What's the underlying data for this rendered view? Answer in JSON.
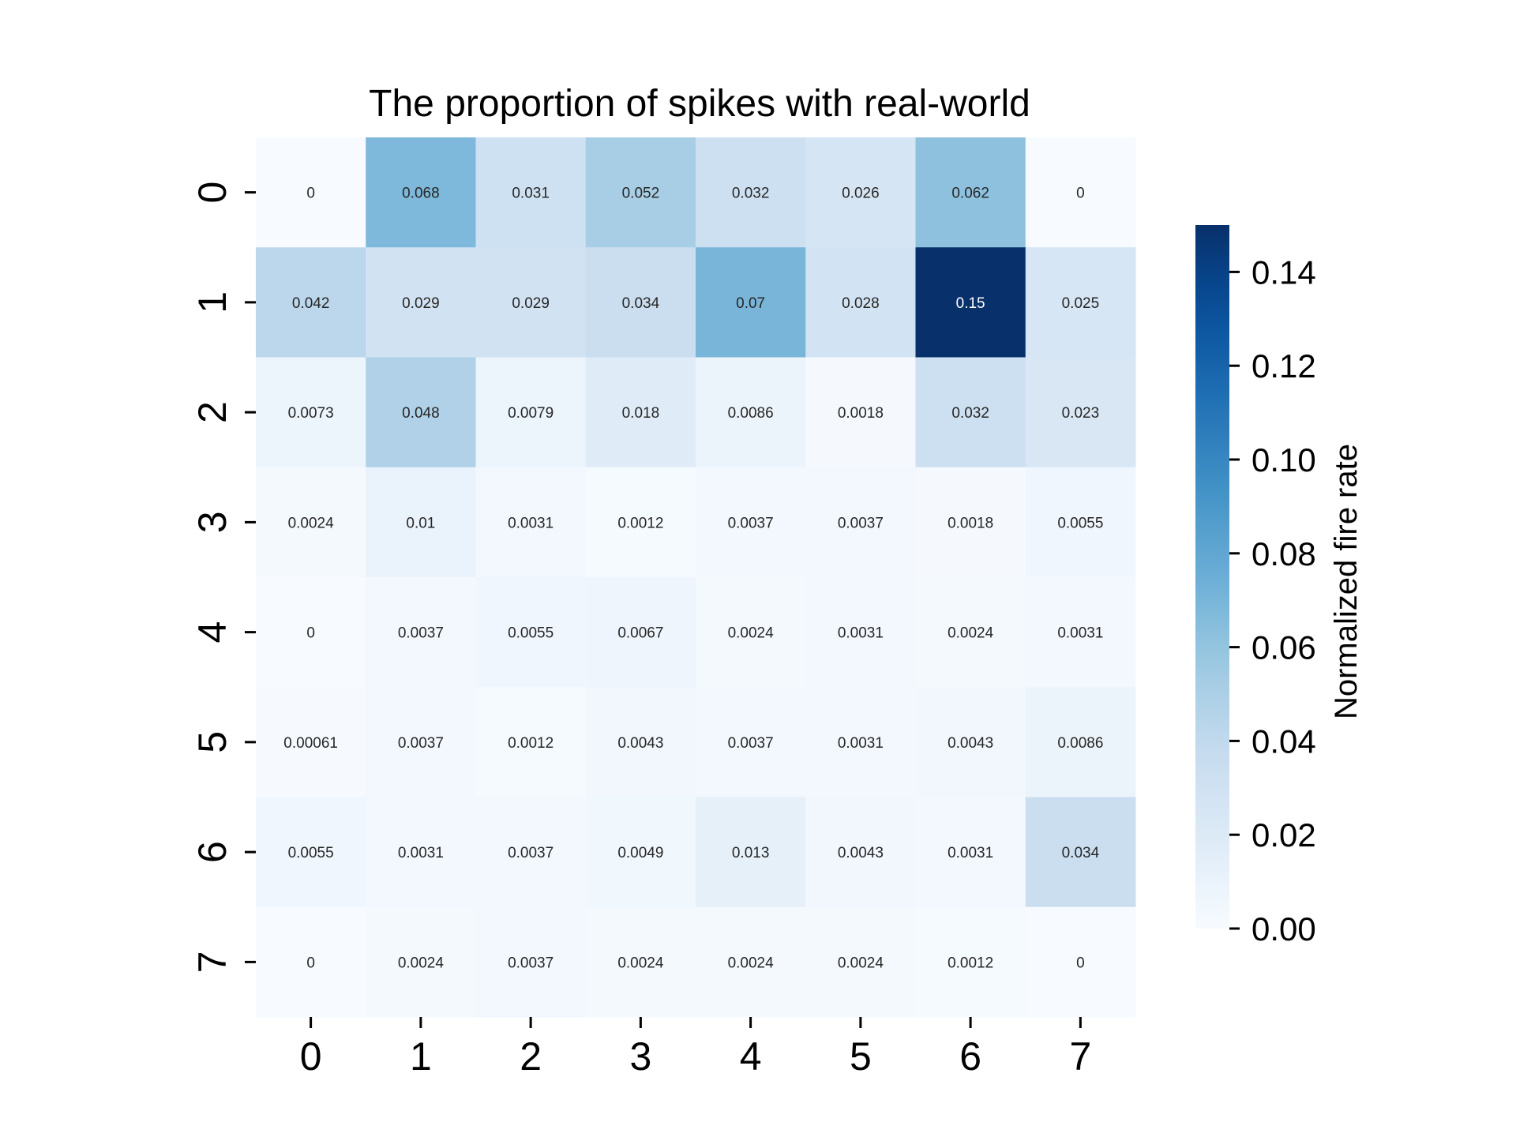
{
  "chart_data": {
    "type": "heatmap",
    "title": "The proportion of spikes with real-world",
    "xlabel": "",
    "ylabel": "",
    "x_categories": [
      "0",
      "1",
      "2",
      "3",
      "4",
      "5",
      "6",
      "7"
    ],
    "y_categories": [
      "0",
      "1",
      "2",
      "3",
      "4",
      "5",
      "6",
      "7"
    ],
    "values": [
      [
        0,
        0.068,
        0.031,
        0.052,
        0.032,
        0.026,
        0.062,
        0
      ],
      [
        0.042,
        0.029,
        0.029,
        0.034,
        0.07,
        0.028,
        0.15,
        0.025
      ],
      [
        0.0073,
        0.048,
        0.0079,
        0.018,
        0.0086,
        0.0018,
        0.032,
        0.023
      ],
      [
        0.0024,
        0.01,
        0.0031,
        0.0012,
        0.0037,
        0.0037,
        0.0018,
        0.0055
      ],
      [
        0,
        0.0037,
        0.0055,
        0.0067,
        0.0024,
        0.0031,
        0.0024,
        0.0031
      ],
      [
        0.00061,
        0.0037,
        0.0012,
        0.0043,
        0.0037,
        0.0031,
        0.0043,
        0.0086
      ],
      [
        0.0055,
        0.0031,
        0.0037,
        0.0049,
        0.013,
        0.0043,
        0.0031,
        0.034
      ],
      [
        0,
        0.0024,
        0.0037,
        0.0024,
        0.0024,
        0.0024,
        0.0012,
        0
      ]
    ],
    "annotations": [
      [
        "0",
        "0.068",
        "0.031",
        "0.052",
        "0.032",
        "0.026",
        "0.062",
        "0"
      ],
      [
        "0.042",
        "0.029",
        "0.029",
        "0.034",
        "0.07",
        "0.028",
        "0.15",
        "0.025"
      ],
      [
        "0.0073",
        "0.048",
        "0.0079",
        "0.018",
        "0.0086",
        "0.0018",
        "0.032",
        "0.023"
      ],
      [
        "0.0024",
        "0.01",
        "0.0031",
        "0.0012",
        "0.0037",
        "0.0037",
        "0.0018",
        "0.0055"
      ],
      [
        "0",
        "0.0037",
        "0.0055",
        "0.0067",
        "0.0024",
        "0.0031",
        "0.0024",
        "0.0031"
      ],
      [
        "0.00061",
        "0.0037",
        "0.0012",
        "0.0043",
        "0.0037",
        "0.0031",
        "0.0043",
        "0.0086"
      ],
      [
        "0.0055",
        "0.0031",
        "0.0037",
        "0.0049",
        "0.013",
        "0.0043",
        "0.0031",
        "0.034"
      ],
      [
        "0",
        "0.0024",
        "0.0037",
        "0.0024",
        "0.0024",
        "0.0024",
        "0.0012",
        "0"
      ]
    ],
    "colormap": "Blues",
    "colorbar": {
      "label": "Normalized fire rate",
      "range": [
        0,
        0.15
      ],
      "ticks": [
        0,
        0.02,
        0.04,
        0.06,
        0.08,
        0.1,
        0.12,
        0.14
      ],
      "tick_labels": [
        "0.00",
        "0.02",
        "0.04",
        "0.06",
        "0.08",
        "0.10",
        "0.12",
        "0.14"
      ],
      "placement": "right"
    },
    "colors": {
      "low": "#f7fbff",
      "high": "#08306b",
      "text_dark": "#262626",
      "text_light": "#ffffff"
    }
  }
}
